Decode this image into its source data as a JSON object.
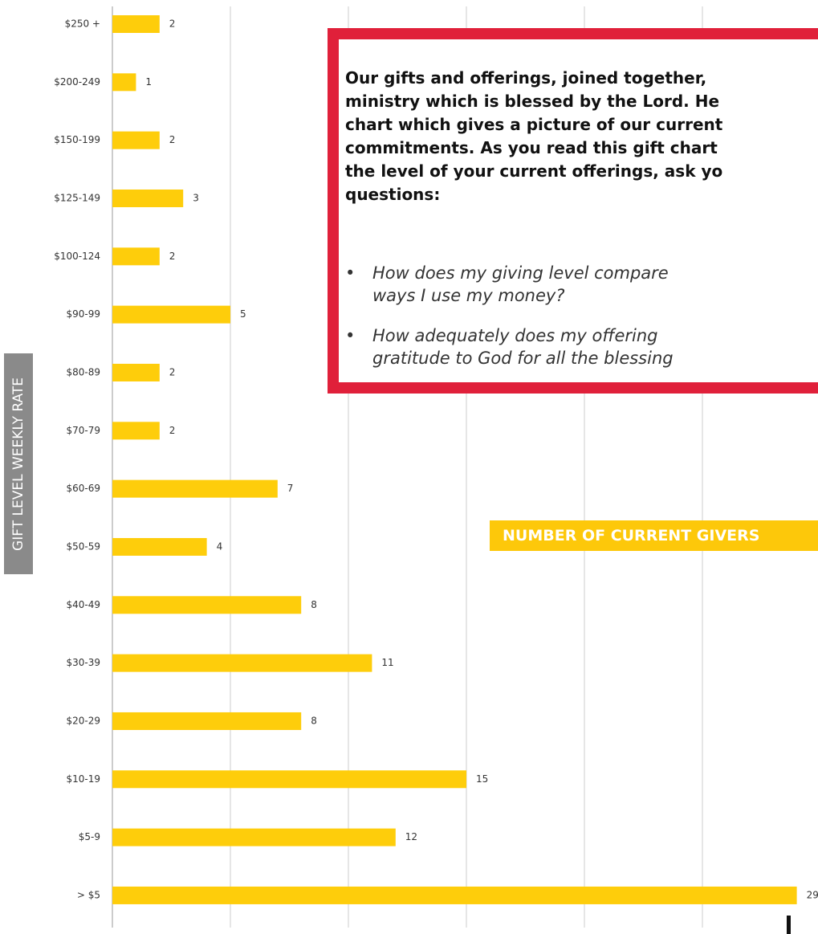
{
  "chart_data": {
    "type": "bar",
    "orientation": "horizontal",
    "y_axis_label": "GIFT LEVEL WEEKLY RATE",
    "x_axis_label": "NUMBER OF CURRENT GIVERS",
    "categories": [
      "$250 +",
      "$200-249",
      "$150-199",
      "$125-149",
      "$100-124",
      "$90-99",
      "$80-89",
      "$70-79",
      "$60-69",
      "$50-59",
      "$40-49",
      "$30-39",
      "$20-29",
      "$10-19",
      "$5-9",
      "> $5"
    ],
    "values": [
      2,
      1,
      2,
      3,
      2,
      5,
      2,
      2,
      7,
      4,
      8,
      11,
      8,
      15,
      12,
      29
    ],
    "color": "#fecd0b",
    "xlim": [
      0,
      30
    ],
    "xticks": [
      0,
      5,
      10,
      15,
      20,
      25,
      30
    ],
    "grid": true
  },
  "callout": {
    "paragraph": [
      "Our gifts and offerings, joined together,",
      "ministry which is blessed by the Lord. He",
      "chart which gives a picture of our current",
      "commitments. As you read this gift chart",
      "the level of your current offerings, ask yo",
      "questions:"
    ],
    "bullets": [
      [
        "How does my giving level compare",
        "ways I use my money?"
      ],
      [
        "How adequately does my offering",
        "gratitude to God for all the blessing"
      ]
    ]
  }
}
